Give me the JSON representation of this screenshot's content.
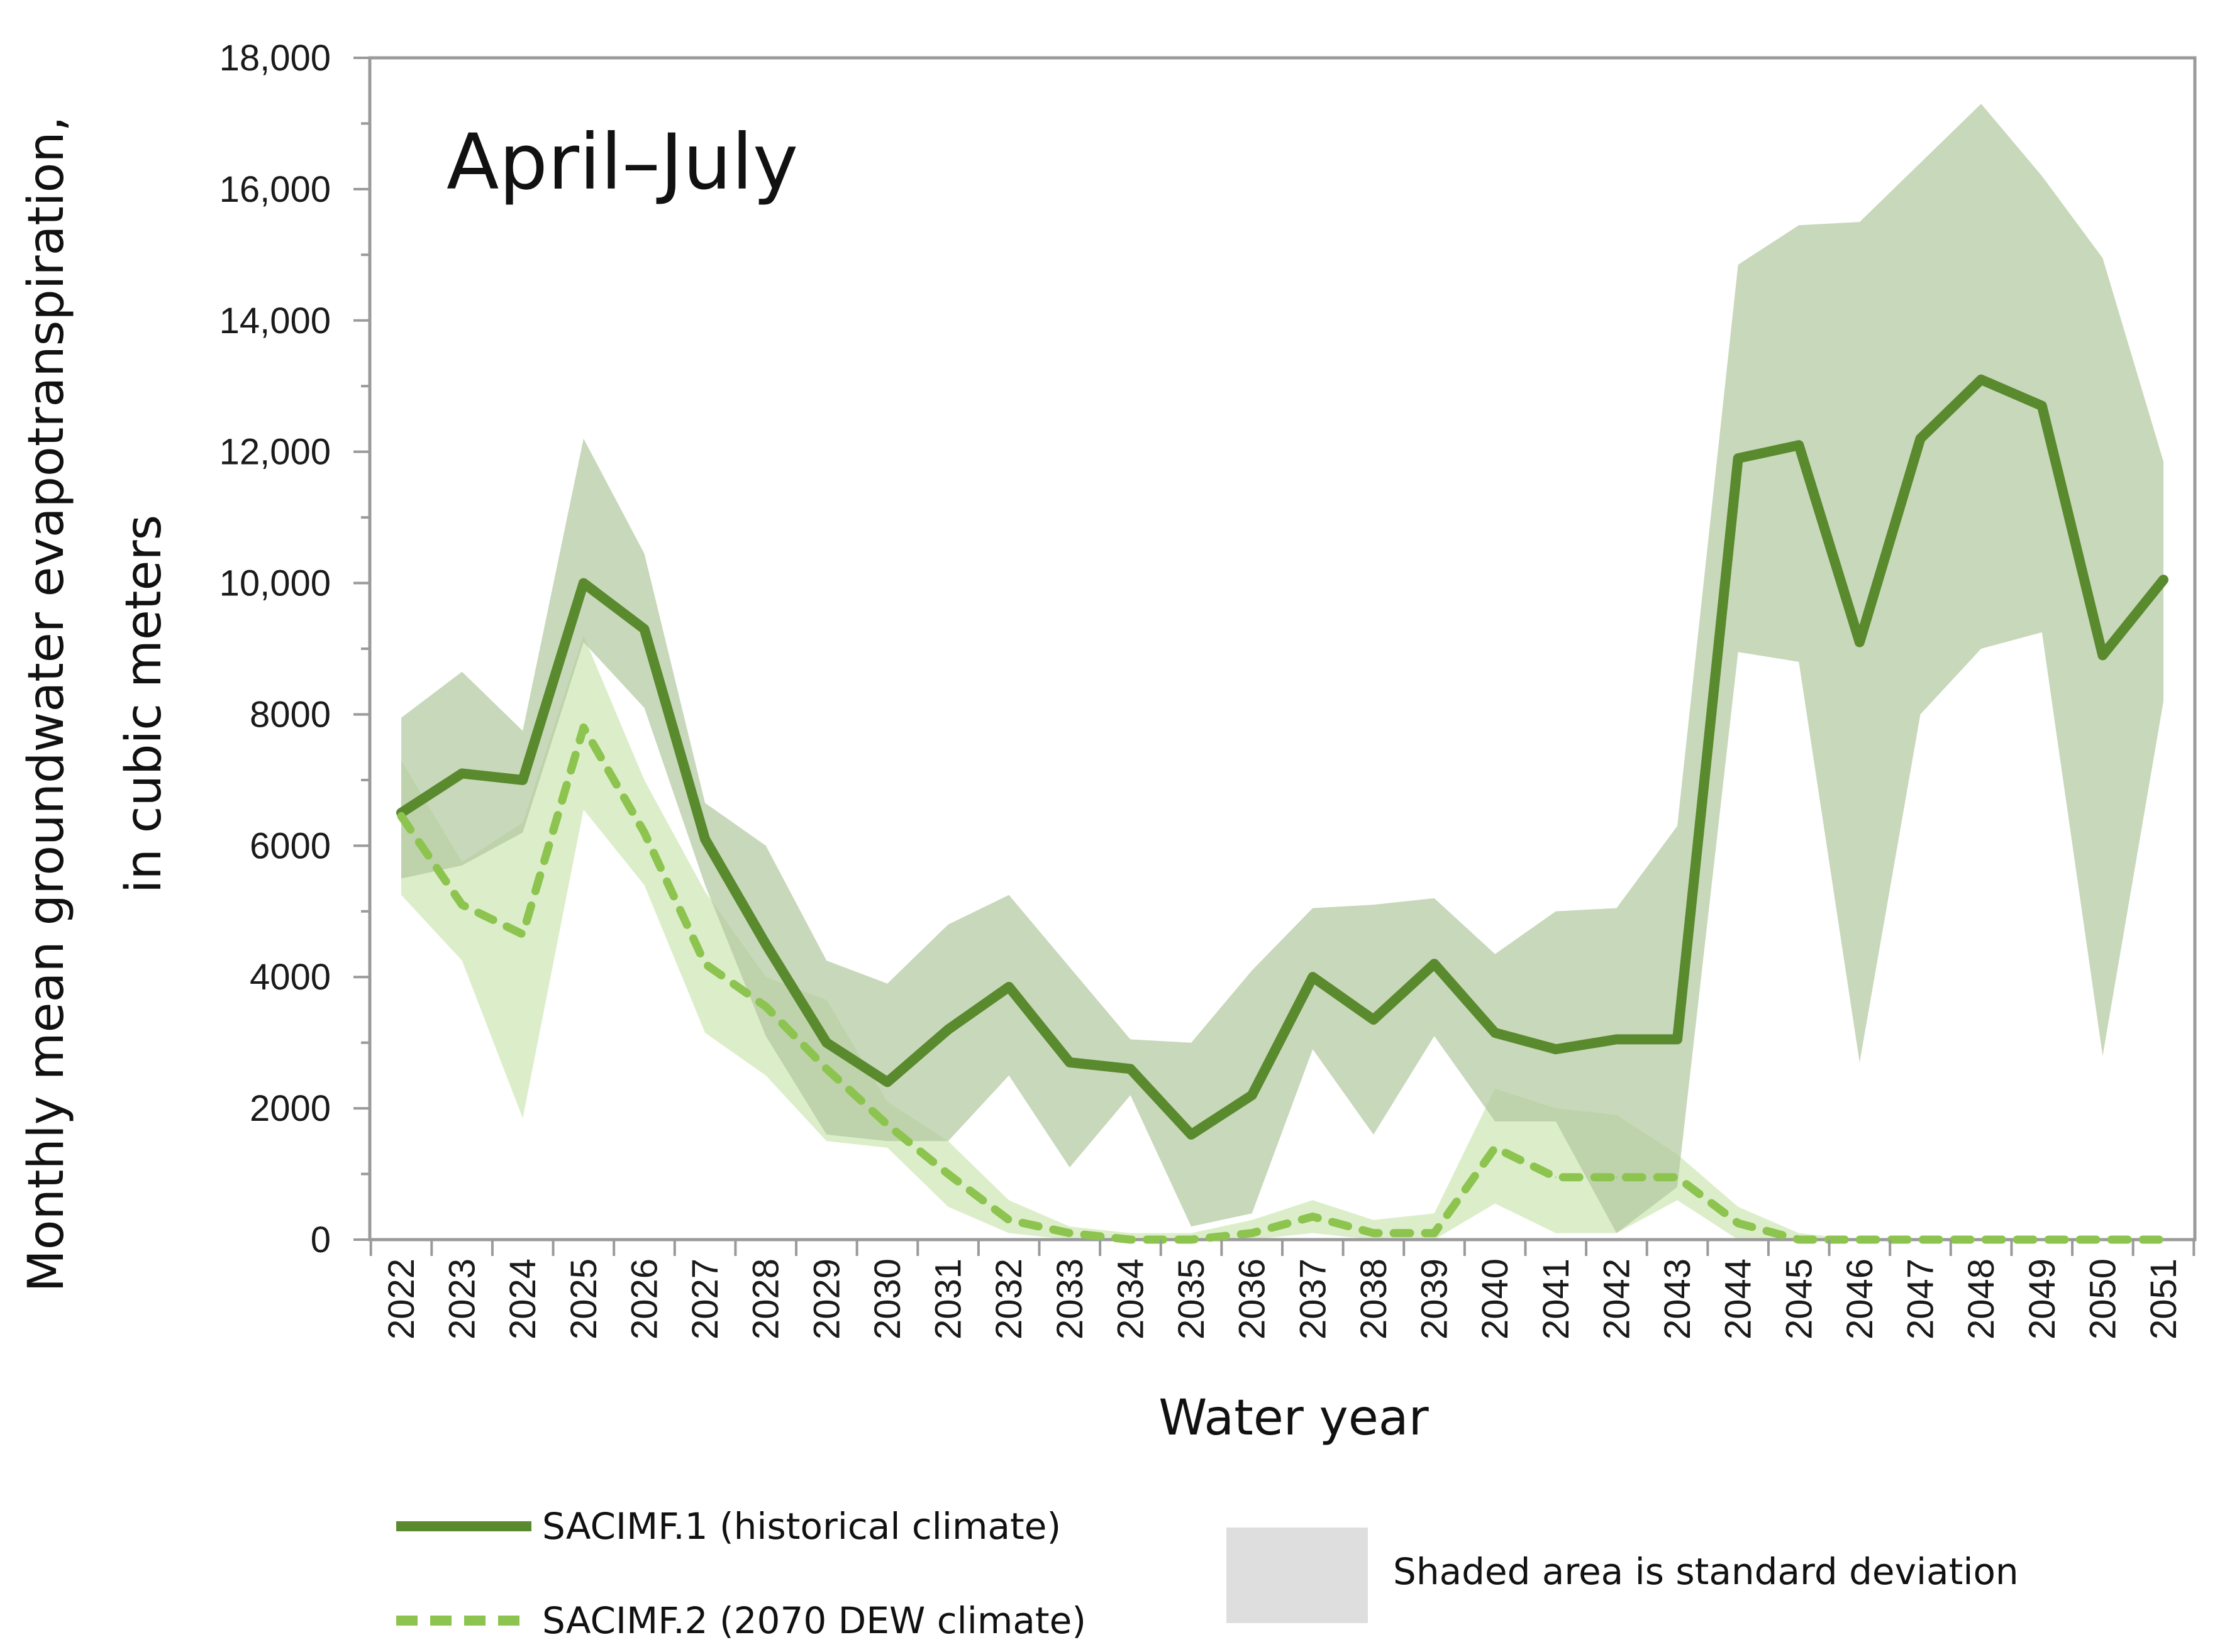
{
  "chart_data": {
    "type": "line",
    "title": "April–July",
    "xlabel": "Water year",
    "ylabel": [
      "Monthly mean groundwater evapotranspiration,",
      "in cubic meters"
    ],
    "ylim": [
      0,
      18000
    ],
    "y_ticks": [
      {
        "value": 0,
        "label": "0"
      },
      {
        "value": 2000,
        "label": "2000"
      },
      {
        "value": 4000,
        "label": "4000"
      },
      {
        "value": 6000,
        "label": "6000"
      },
      {
        "value": 8000,
        "label": "8000"
      },
      {
        "value": 10000,
        "label": "10,000"
      },
      {
        "value": 12000,
        "label": "12,000"
      },
      {
        "value": 14000,
        "label": "14,000"
      },
      {
        "value": 16000,
        "label": "16,000"
      },
      {
        "value": 18000,
        "label": "18,000"
      }
    ],
    "categories": [
      "2022",
      "2023",
      "2024",
      "2025",
      "2026",
      "2027",
      "2028",
      "2029",
      "2030",
      "2031",
      "2032",
      "2033",
      "2034",
      "2035",
      "2036",
      "2037",
      "2038",
      "2039",
      "2040",
      "2041",
      "2042",
      "2043",
      "2044",
      "2045",
      "2046",
      "2047",
      "2048",
      "2049",
      "2050",
      "2051"
    ],
    "series": [
      {
        "name": "SACIMF.1 (historical climate)",
        "style": "solid",
        "color": "#5a8a2e",
        "band_color": "#b3c9a0",
        "values": [
          6500,
          7100,
          7000,
          10000,
          9300,
          6100,
          4500,
          3000,
          2400,
          3200,
          3850,
          2700,
          2600,
          1600,
          2200,
          4000,
          3350,
          4200,
          3150,
          2900,
          3050,
          3050,
          11900,
          12100,
          9100,
          12200,
          13100,
          12700,
          8900,
          10050
        ],
        "lower": [
          5500,
          5700,
          6200,
          9100,
          8100,
          5400,
          3100,
          1600,
          1500,
          1500,
          2500,
          1100,
          2200,
          200,
          400,
          2900,
          1600,
          3100,
          1800,
          1800,
          100,
          800,
          8950,
          8800,
          2700,
          8000,
          9000,
          9250,
          2800,
          8200
        ],
        "upper": [
          7950,
          8650,
          7750,
          12200,
          10450,
          6650,
          6000,
          4250,
          3900,
          4800,
          5250,
          4150,
          3050,
          3000,
          4100,
          5050,
          5100,
          5200,
          4350,
          5000,
          5050,
          6300,
          14850,
          15450,
          15500,
          16400,
          17300,
          16200,
          14950,
          11850
        ]
      },
      {
        "name": "SACIMF.2 (2070 DEW climate)",
        "style": "dashed",
        "color": "#8dc450",
        "band_color": "#d6ebc0",
        "values": [
          6450,
          5100,
          4650,
          7800,
          6200,
          4200,
          3550,
          2600,
          1750,
          1000,
          300,
          100,
          0,
          0,
          100,
          350,
          100,
          100,
          1400,
          950,
          950,
          950,
          250,
          0,
          0,
          0,
          0,
          0,
          0,
          0
        ],
        "lower": [
          5250,
          4250,
          1850,
          6550,
          5400,
          3150,
          2500,
          1500,
          1400,
          500,
          100,
          0,
          0,
          0,
          0,
          100,
          0,
          0,
          550,
          100,
          100,
          600,
          0,
          0,
          0,
          0,
          0,
          0,
          0,
          0
        ],
        "upper": [
          7300,
          5750,
          6350,
          9200,
          7000,
          5300,
          4000,
          3650,
          2100,
          1500,
          600,
          200,
          100,
          100,
          300,
          600,
          300,
          400,
          2300,
          2000,
          1900,
          1300,
          500,
          100,
          0,
          0,
          0,
          0,
          0,
          0
        ]
      }
    ],
    "legend": {
      "placement": "bottom",
      "entries": [
        "SACIMF.1 (historical climate)",
        "SACIMF.2 (2070 DEW climate)"
      ],
      "shade_note": "Shaded area is standard deviation",
      "shade_color": "#dedede"
    }
  }
}
